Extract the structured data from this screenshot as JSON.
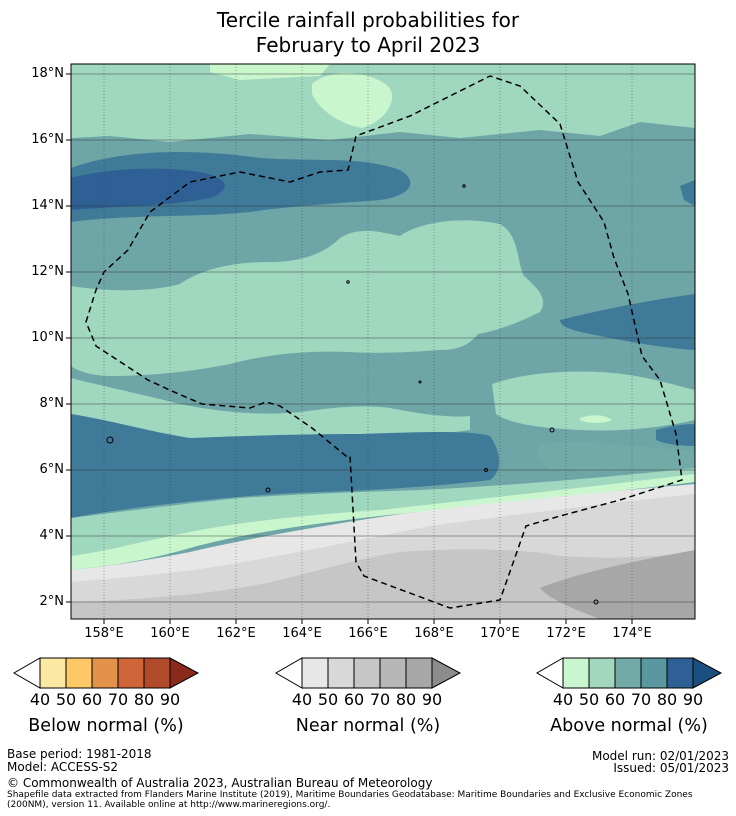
{
  "title": {
    "line1": "Tercile rainfall probabilities for",
    "line2": "February to April 2023"
  },
  "map": {
    "lat_ticks": [
      "18°N",
      "16°N",
      "14°N",
      "12°N",
      "10°N",
      "8°N",
      "6°N",
      "4°N",
      "2°N"
    ],
    "lon_ticks": [
      "158°E",
      "160°E",
      "162°E",
      "164°E",
      "166°E",
      "168°E",
      "170°E",
      "172°E",
      "174°E"
    ],
    "lat_range_deg": [
      1.5,
      18.4
    ],
    "lon_range_deg": [
      157,
      176
    ]
  },
  "colorbars": [
    {
      "title": "Below normal (%)",
      "ticks": [
        "40",
        "50",
        "60",
        "70",
        "80",
        "90"
      ],
      "colors": [
        "#fbe8a3",
        "#fdc865",
        "#e3924b",
        "#d0653a",
        "#b04a2a",
        "#8c2a1a"
      ]
    },
    {
      "title": "Near normal (%)",
      "ticks": [
        "40",
        "50",
        "60",
        "70",
        "80",
        "90"
      ],
      "colors": [
        "#e7e7e7",
        "#d8d8d8",
        "#c6c6c6",
        "#b7b7b7",
        "#a7a7a7",
        "#8c8c8c"
      ]
    },
    {
      "title": "Above normal (%)",
      "ticks": [
        "40",
        "50",
        "60",
        "70",
        "80",
        "90"
      ],
      "colors": [
        "#c9f5cf",
        "#a1d7be",
        "#72aaa7",
        "#5a979e",
        "#2f6095",
        "#1a4f7f"
      ]
    }
  ],
  "footer": {
    "base_period": "Base period: 1981-2018",
    "model": "Model: ACCESS-S2",
    "model_run": "Model run: 02/01/2023",
    "issued": "Issued: 05/01/2023",
    "copyright": "© Commonwealth of Australia 2023, Australian Bureau of Meteorology",
    "shapefile_line1": "Shapefile data extracted from Flanders Marine Institute (2019), Maritime Boundaries Geodatabase: Maritime Boundaries and Exclusive Economic Zones",
    "shapefile_line2": "(200NM), version 11. Available online at http://www.marineregions.org/."
  }
}
